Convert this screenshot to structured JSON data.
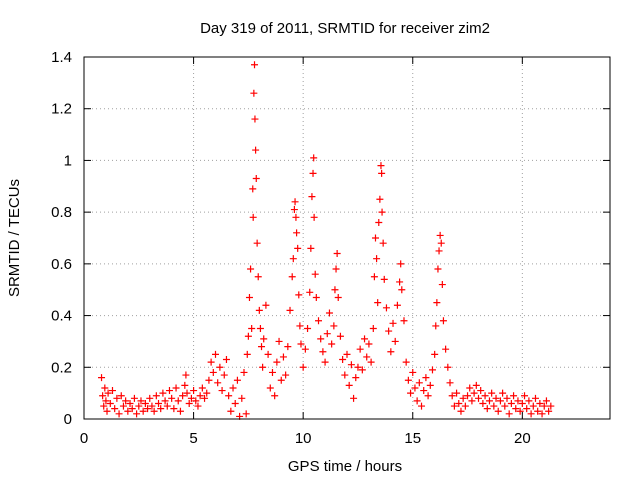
{
  "chart_data": {
    "type": "scatter",
    "title": "Day 319 of 2011, SRMTID for receiver zim2",
    "xlabel": "GPS time / hours",
    "ylabel": "SRMTID / TECUs",
    "xlim": [
      0,
      24
    ],
    "ylim": [
      0,
      1.4
    ],
    "xticks": [
      0,
      5,
      10,
      15,
      20
    ],
    "xtick_labels": [
      "0",
      "5",
      "10",
      "15",
      "20"
    ],
    "yticks": [
      0,
      0.2,
      0.4,
      0.6,
      0.8,
      1.0,
      1.2,
      1.4
    ],
    "ytick_labels": [
      "0",
      "0.2",
      "0.4",
      "0.6",
      "0.8",
      "1",
      "1.2",
      "1.4"
    ],
    "grid": true,
    "marker": "+",
    "color": "#ff0000",
    "series": [
      {
        "name": "SRMTID",
        "points": [
          [
            0.8,
            0.16
          ],
          [
            0.85,
            0.09
          ],
          [
            0.9,
            0.05
          ],
          [
            0.95,
            0.12
          ],
          [
            1.0,
            0.07
          ],
          [
            1.05,
            0.03
          ],
          [
            1.1,
            0.1
          ],
          [
            1.2,
            0.06
          ],
          [
            1.3,
            0.11
          ],
          [
            1.4,
            0.04
          ],
          [
            1.5,
            0.08
          ],
          [
            1.6,
            0.02
          ],
          [
            1.7,
            0.09
          ],
          [
            1.8,
            0.05
          ],
          [
            1.9,
            0.07
          ],
          [
            2.0,
            0.03
          ],
          [
            2.1,
            0.06
          ],
          [
            2.2,
            0.04
          ],
          [
            2.3,
            0.08
          ],
          [
            2.4,
            0.02
          ],
          [
            2.5,
            0.05
          ],
          [
            2.6,
            0.07
          ],
          [
            2.7,
            0.03
          ],
          [
            2.8,
            0.06
          ],
          [
            2.9,
            0.04
          ],
          [
            3.0,
            0.08
          ],
          [
            3.1,
            0.05
          ],
          [
            3.2,
            0.03
          ],
          [
            3.3,
            0.09
          ],
          [
            3.4,
            0.06
          ],
          [
            3.5,
            0.04
          ],
          [
            3.6,
            0.1
          ],
          [
            3.7,
            0.07
          ],
          [
            3.8,
            0.05
          ],
          [
            3.9,
            0.11
          ],
          [
            4.0,
            0.08
          ],
          [
            4.1,
            0.04
          ],
          [
            4.2,
            0.12
          ],
          [
            4.3,
            0.07
          ],
          [
            4.4,
            0.03
          ],
          [
            4.5,
            0.09
          ],
          [
            4.6,
            0.13
          ],
          [
            4.65,
            0.17
          ],
          [
            4.7,
            0.1
          ],
          [
            4.8,
            0.06
          ],
          [
            4.9,
            0.08
          ],
          [
            5.0,
            0.11
          ],
          [
            5.1,
            0.07
          ],
          [
            5.2,
            0.05
          ],
          [
            5.3,
            0.09
          ],
          [
            5.4,
            0.12
          ],
          [
            5.5,
            0.08
          ],
          [
            5.6,
            0.1
          ],
          [
            5.7,
            0.15
          ],
          [
            5.8,
            0.22
          ],
          [
            5.9,
            0.18
          ],
          [
            6.0,
            0.25
          ],
          [
            6.1,
            0.14
          ],
          [
            6.2,
            0.2
          ],
          [
            6.3,
            0.11
          ],
          [
            6.4,
            0.17
          ],
          [
            6.5,
            0.23
          ],
          [
            6.6,
            0.09
          ],
          [
            6.7,
            0.03
          ],
          [
            6.8,
            0.12
          ],
          [
            6.9,
            0.06
          ],
          [
            7.0,
            0.15
          ],
          [
            7.1,
            0.01
          ],
          [
            7.2,
            0.08
          ],
          [
            7.3,
            0.18
          ],
          [
            7.4,
            0.02
          ],
          [
            7.45,
            0.25
          ],
          [
            7.5,
            0.32
          ],
          [
            7.55,
            0.47
          ],
          [
            7.6,
            0.58
          ],
          [
            7.65,
            0.35
          ],
          [
            7.7,
            0.89
          ],
          [
            7.72,
            0.78
          ],
          [
            7.75,
            1.26
          ],
          [
            7.78,
            1.37
          ],
          [
            7.8,
            1.16
          ],
          [
            7.83,
            1.04
          ],
          [
            7.86,
            0.93
          ],
          [
            7.9,
            0.68
          ],
          [
            7.95,
            0.55
          ],
          [
            8.0,
            0.42
          ],
          [
            8.05,
            0.35
          ],
          [
            8.1,
            0.28
          ],
          [
            8.15,
            0.2
          ],
          [
            8.2,
            0.31
          ],
          [
            8.3,
            0.44
          ],
          [
            8.4,
            0.25
          ],
          [
            8.5,
            0.12
          ],
          [
            8.6,
            0.18
          ],
          [
            8.7,
            0.09
          ],
          [
            8.8,
            0.22
          ],
          [
            8.9,
            0.3
          ],
          [
            9.0,
            0.15
          ],
          [
            9.1,
            0.24
          ],
          [
            9.2,
            0.17
          ],
          [
            9.3,
            0.28
          ],
          [
            9.4,
            0.42
          ],
          [
            9.5,
            0.55
          ],
          [
            9.55,
            0.62
          ],
          [
            9.6,
            0.81
          ],
          [
            9.63,
            0.84
          ],
          [
            9.67,
            0.78
          ],
          [
            9.7,
            0.72
          ],
          [
            9.75,
            0.66
          ],
          [
            9.8,
            0.48
          ],
          [
            9.85,
            0.36
          ],
          [
            9.9,
            0.29
          ],
          [
            10.0,
            0.2
          ],
          [
            10.1,
            0.27
          ],
          [
            10.2,
            0.35
          ],
          [
            10.3,
            0.49
          ],
          [
            10.35,
            0.66
          ],
          [
            10.4,
            0.86
          ],
          [
            10.45,
            0.95
          ],
          [
            10.48,
            1.01
          ],
          [
            10.5,
            0.78
          ],
          [
            10.55,
            0.56
          ],
          [
            10.6,
            0.47
          ],
          [
            10.7,
            0.38
          ],
          [
            10.8,
            0.31
          ],
          [
            10.9,
            0.26
          ],
          [
            11.0,
            0.22
          ],
          [
            11.1,
            0.33
          ],
          [
            11.2,
            0.41
          ],
          [
            11.3,
            0.29
          ],
          [
            11.4,
            0.36
          ],
          [
            11.45,
            0.5
          ],
          [
            11.5,
            0.58
          ],
          [
            11.55,
            0.64
          ],
          [
            11.6,
            0.47
          ],
          [
            11.7,
            0.32
          ],
          [
            11.8,
            0.23
          ],
          [
            11.9,
            0.17
          ],
          [
            12.0,
            0.25
          ],
          [
            12.1,
            0.13
          ],
          [
            12.2,
            0.21
          ],
          [
            12.3,
            0.08
          ],
          [
            12.4,
            0.16
          ],
          [
            12.5,
            0.2
          ],
          [
            12.6,
            0.27
          ],
          [
            12.7,
            0.19
          ],
          [
            12.8,
            0.31
          ],
          [
            12.9,
            0.24
          ],
          [
            13.0,
            0.29
          ],
          [
            13.1,
            0.22
          ],
          [
            13.2,
            0.35
          ],
          [
            13.25,
            0.55
          ],
          [
            13.3,
            0.7
          ],
          [
            13.35,
            0.62
          ],
          [
            13.4,
            0.45
          ],
          [
            13.45,
            0.76
          ],
          [
            13.5,
            0.85
          ],
          [
            13.55,
            0.98
          ],
          [
            13.58,
            0.95
          ],
          [
            13.6,
            0.8
          ],
          [
            13.65,
            0.68
          ],
          [
            13.7,
            0.54
          ],
          [
            13.8,
            0.43
          ],
          [
            13.9,
            0.34
          ],
          [
            14.0,
            0.26
          ],
          [
            14.1,
            0.37
          ],
          [
            14.2,
            0.3
          ],
          [
            14.3,
            0.44
          ],
          [
            14.4,
            0.53
          ],
          [
            14.45,
            0.6
          ],
          [
            14.5,
            0.5
          ],
          [
            14.6,
            0.38
          ],
          [
            14.7,
            0.22
          ],
          [
            14.8,
            0.15
          ],
          [
            14.9,
            0.1
          ],
          [
            15.0,
            0.18
          ],
          [
            15.1,
            0.12
          ],
          [
            15.2,
            0.07
          ],
          [
            15.3,
            0.14
          ],
          [
            15.4,
            0.05
          ],
          [
            15.5,
            0.11
          ],
          [
            15.6,
            0.16
          ],
          [
            15.7,
            0.09
          ],
          [
            15.8,
            0.13
          ],
          [
            15.9,
            0.19
          ],
          [
            16.0,
            0.25
          ],
          [
            16.05,
            0.36
          ],
          [
            16.1,
            0.45
          ],
          [
            16.15,
            0.58
          ],
          [
            16.2,
            0.65
          ],
          [
            16.25,
            0.71
          ],
          [
            16.3,
            0.68
          ],
          [
            16.35,
            0.52
          ],
          [
            16.4,
            0.38
          ],
          [
            16.5,
            0.27
          ],
          [
            16.6,
            0.2
          ],
          [
            16.7,
            0.14
          ],
          [
            16.8,
            0.09
          ],
          [
            16.9,
            0.05
          ],
          [
            17.0,
            0.1
          ],
          [
            17.1,
            0.06
          ],
          [
            17.2,
            0.03
          ],
          [
            17.3,
            0.08
          ],
          [
            17.4,
            0.05
          ],
          [
            17.5,
            0.09
          ],
          [
            17.6,
            0.12
          ],
          [
            17.7,
            0.07
          ],
          [
            17.8,
            0.1
          ],
          [
            17.9,
            0.13
          ],
          [
            18.0,
            0.08
          ],
          [
            18.1,
            0.11
          ],
          [
            18.2,
            0.06
          ],
          [
            18.3,
            0.09
          ],
          [
            18.4,
            0.04
          ],
          [
            18.5,
            0.07
          ],
          [
            18.6,
            0.1
          ],
          [
            18.7,
            0.05
          ],
          [
            18.8,
            0.08
          ],
          [
            18.9,
            0.03
          ],
          [
            19.0,
            0.07
          ],
          [
            19.1,
            0.1
          ],
          [
            19.2,
            0.05
          ],
          [
            19.3,
            0.08
          ],
          [
            19.4,
            0.02
          ],
          [
            19.5,
            0.06
          ],
          [
            19.6,
            0.09
          ],
          [
            19.7,
            0.04
          ],
          [
            19.8,
            0.07
          ],
          [
            19.9,
            0.03
          ],
          [
            20.0,
            0.06
          ],
          [
            20.1,
            0.09
          ],
          [
            20.2,
            0.04
          ],
          [
            20.3,
            0.07
          ],
          [
            20.4,
            0.02
          ],
          [
            20.5,
            0.05
          ],
          [
            20.6,
            0.08
          ],
          [
            20.7,
            0.03
          ],
          [
            20.8,
            0.06
          ],
          [
            20.9,
            0.02
          ],
          [
            21.0,
            0.05
          ],
          [
            21.1,
            0.07
          ],
          [
            21.2,
            0.03
          ],
          [
            21.3,
            0.05
          ]
        ]
      }
    ]
  }
}
